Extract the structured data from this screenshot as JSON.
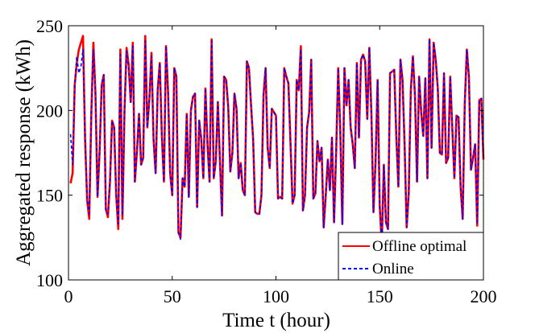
{
  "chart_data": {
    "type": "line",
    "title": "",
    "xlabel": "Time t (hour)",
    "ylabel": "Aggregated response (kWh)",
    "xlim": [
      0,
      200
    ],
    "ylim": [
      100,
      250
    ],
    "xticks": [
      0,
      50,
      100,
      150,
      200
    ],
    "yticks": [
      100,
      150,
      200,
      250
    ],
    "xtick_labels": [
      "0",
      "50",
      "100",
      "150",
      "200"
    ],
    "ytick_labels": [
      "100",
      "150",
      "200",
      "250"
    ],
    "grid": false,
    "legend_position": "bottom-right",
    "series": [
      {
        "name": "Offline optimal",
        "color": "#ff0000",
        "style": "solid",
        "x": [
          1,
          2,
          3,
          4,
          5,
          6,
          7,
          8,
          9,
          10,
          11,
          12,
          13,
          14,
          15,
          16,
          17,
          18,
          19,
          20,
          21,
          22,
          23,
          24,
          25,
          26,
          27,
          28,
          29,
          30,
          31,
          32,
          33,
          34,
          35,
          36,
          37,
          38,
          39,
          40,
          41,
          42,
          43,
          44,
          45,
          46,
          47,
          48,
          49,
          50,
          51,
          52,
          53,
          54,
          55,
          56,
          57,
          58,
          59,
          60,
          61,
          62,
          63,
          64,
          65,
          66,
          67,
          68,
          69,
          70,
          71,
          72,
          73,
          74,
          75,
          76,
          77,
          78,
          79,
          80,
          81,
          82,
          83,
          84,
          85,
          86,
          87,
          88,
          89,
          90,
          91,
          92,
          93,
          94,
          95,
          96,
          97,
          98,
          99,
          100,
          101,
          102,
          103,
          104,
          105,
          106,
          107,
          108,
          109,
          110,
          111,
          112,
          113,
          114,
          115,
          116,
          117,
          118,
          119,
          120,
          121,
          122,
          123,
          124,
          125,
          126,
          127,
          128,
          129,
          130,
          131,
          132,
          133,
          134,
          135,
          136,
          137,
          138,
          139,
          140,
          141,
          142,
          143,
          144,
          145,
          146,
          147,
          148,
          149,
          150,
          151,
          152,
          153,
          154,
          155,
          156,
          157,
          158,
          159,
          160,
          161,
          162,
          163,
          164,
          165,
          166,
          167,
          168,
          169,
          170,
          171,
          172,
          173,
          174,
          175,
          176,
          177,
          178,
          179,
          180,
          181,
          182,
          183,
          184,
          185,
          186,
          187,
          188,
          189,
          190,
          191,
          192,
          193,
          194,
          195,
          196,
          197,
          198,
          199,
          200
        ],
        "values": [
          157,
          163,
          215,
          228,
          236,
          240,
          244,
          183,
          147,
          136,
          198,
          240,
          210,
          149,
          176,
          215,
          221,
          142,
          137,
          158,
          194,
          190,
          150,
          130,
          236,
          136,
          200,
          237,
          227,
          205,
          240,
          158,
          176,
          198,
          168,
          172,
          244,
          190,
          207,
          234,
          183,
          163,
          212,
          228,
          185,
          158,
          238,
          211,
          163,
          150,
          225,
          220,
          128,
          125,
          160,
          155,
          198,
          149,
          200,
          208,
          210,
          143,
          194,
          183,
          160,
          213,
          180,
          158,
          242,
          160,
          170,
          205,
          170,
          138,
          220,
          218,
          202,
          164,
          175,
          210,
          201,
          160,
          169,
          153,
          150,
          229,
          225,
          203,
          183,
          140,
          139,
          139,
          150,
          209,
          225,
          178,
          166,
          201,
          199,
          197,
          148,
          149,
          148,
          225,
          220,
          216,
          181,
          145,
          150,
          218,
          212,
          238,
          141,
          150,
          190,
          199,
          230,
          148,
          151,
          182,
          170,
          178,
          131,
          150,
          171,
          153,
          184,
          134,
          175,
          225,
          188,
          133,
          225,
          203,
          218,
          190,
          180,
          166,
          228,
          184,
          230,
          233,
          229,
          195,
          237,
          198,
          140,
          170,
          218,
          144,
          121,
          168,
          134,
          130,
          222,
          223,
          224,
          185,
          155,
          230,
          218,
          180,
          131,
          151,
          212,
          232,
          209,
          158,
          220,
          199,
          185,
          219,
          160,
          242,
          178,
          240,
          230,
          213,
          175,
          174,
          222,
          169,
          172,
          220,
          189,
          160,
          197,
          196,
          155,
          136,
          204,
          236,
          220,
          165,
          172,
          180,
          132,
          206,
          207,
          171
        ]
      },
      {
        "name": "Online",
        "color": "#0000ff",
        "style": "dashed",
        "x": [
          1,
          2,
          3,
          4,
          5,
          6,
          7,
          8,
          9,
          10,
          11,
          12,
          13,
          14,
          15,
          16,
          17,
          18,
          19,
          20,
          21,
          22,
          23,
          24,
          25,
          26,
          27,
          28,
          29,
          30,
          31,
          32,
          33,
          34,
          35,
          36,
          37,
          38,
          39,
          40,
          41,
          42,
          43,
          44,
          45,
          46,
          47,
          48,
          49,
          50,
          51,
          52,
          53,
          54,
          55,
          56,
          57,
          58,
          59,
          60,
          61,
          62,
          63,
          64,
          65,
          66,
          67,
          68,
          69,
          70,
          71,
          72,
          73,
          74,
          75,
          76,
          77,
          78,
          79,
          80,
          81,
          82,
          83,
          84,
          85,
          86,
          87,
          88,
          89,
          90,
          91,
          92,
          93,
          94,
          95,
          96,
          97,
          98,
          99,
          100,
          101,
          102,
          103,
          104,
          105,
          106,
          107,
          108,
          109,
          110,
          111,
          112,
          113,
          114,
          115,
          116,
          117,
          118,
          119,
          120,
          121,
          122,
          123,
          124,
          125,
          126,
          127,
          128,
          129,
          130,
          131,
          132,
          133,
          134,
          135,
          136,
          137,
          138,
          139,
          140,
          141,
          142,
          143,
          144,
          145,
          146,
          147,
          148,
          149,
          150,
          151,
          152,
          153,
          154,
          155,
          156,
          157,
          158,
          159,
          160,
          161,
          162,
          163,
          164,
          165,
          166,
          167,
          168,
          169,
          170,
          171,
          172,
          173,
          174,
          175,
          176,
          177,
          178,
          179,
          180,
          181,
          182,
          183,
          184,
          185,
          186,
          187,
          188,
          189,
          190,
          191,
          192,
          193,
          194,
          195,
          196,
          197,
          198,
          199,
          200
        ],
        "values": [
          186,
          168,
          215,
          232,
          222,
          226,
          236,
          183,
          147,
          139,
          198,
          236,
          210,
          149,
          176,
          215,
          221,
          140,
          139,
          158,
          194,
          190,
          150,
          133,
          233,
          138,
          200,
          235,
          225,
          205,
          238,
          158,
          176,
          198,
          168,
          172,
          241,
          190,
          207,
          232,
          183,
          163,
          212,
          228,
          185,
          158,
          238,
          211,
          163,
          150,
          225,
          220,
          128,
          124,
          160,
          155,
          198,
          149,
          200,
          208,
          210,
          143,
          194,
          183,
          160,
          213,
          180,
          158,
          241,
          160,
          170,
          205,
          170,
          138,
          220,
          218,
          202,
          164,
          175,
          210,
          201,
          160,
          169,
          153,
          150,
          229,
          225,
          203,
          183,
          140,
          139,
          139,
          150,
          209,
          225,
          178,
          166,
          201,
          199,
          197,
          148,
          149,
          148,
          225,
          220,
          216,
          181,
          145,
          150,
          218,
          212,
          236,
          141,
          150,
          190,
          199,
          230,
          148,
          151,
          182,
          170,
          178,
          131,
          150,
          171,
          153,
          184,
          134,
          175,
          225,
          188,
          133,
          225,
          203,
          218,
          190,
          180,
          166,
          228,
          184,
          230,
          233,
          229,
          195,
          237,
          198,
          140,
          170,
          218,
          144,
          121,
          168,
          134,
          130,
          222,
          223,
          224,
          185,
          155,
          230,
          218,
          180,
          131,
          151,
          212,
          232,
          209,
          158,
          220,
          199,
          185,
          219,
          160,
          242,
          178,
          240,
          230,
          213,
          175,
          174,
          222,
          169,
          172,
          220,
          189,
          160,
          197,
          196,
          155,
          136,
          204,
          236,
          220,
          165,
          172,
          180,
          133,
          206,
          207,
          171
        ]
      }
    ]
  }
}
